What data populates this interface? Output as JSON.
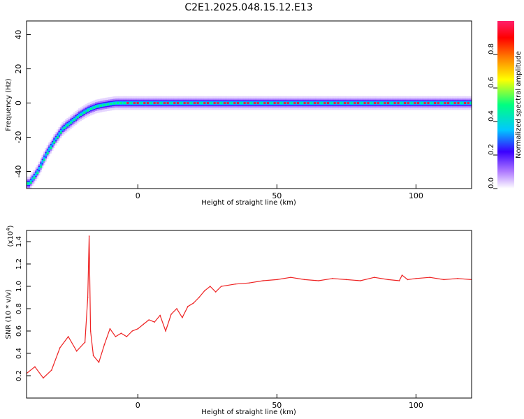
{
  "title": "C2E1.2025.048.15.12.E13",
  "chart_data": [
    {
      "type": "heatmap",
      "title": "C2E1.2025.048.15.12.E13",
      "xlabel": "Height of straight line (km)",
      "ylabel": "Frequency (Hz)",
      "xlim": [
        -40,
        120
      ],
      "ylim": [
        -50,
        48
      ],
      "xticks": [
        0,
        50,
        100
      ],
      "yticks": [
        -40,
        -20,
        0,
        20,
        40
      ],
      "ridge": {
        "description_points": [
          {
            "x": -39,
            "y": -47
          },
          {
            "x": -36,
            "y": -40
          },
          {
            "x": -33,
            "y": -30
          },
          {
            "x": -30,
            "y": -22
          },
          {
            "x": -27,
            "y": -15
          },
          {
            "x": -24,
            "y": -11
          },
          {
            "x": -21,
            "y": -7
          },
          {
            "x": -18,
            "y": -4
          },
          {
            "x": -15,
            "y": -2
          },
          {
            "x": -12,
            "y": -1
          },
          {
            "x": -8,
            "y": 0
          },
          {
            "x": 0,
            "y": 0
          },
          {
            "x": 120,
            "y": 0
          }
        ],
        "peak_amplitude": 1.0
      },
      "colorbar": {
        "label": "Normalized spectral amplitude",
        "range": [
          0,
          1
        ],
        "ticks": [
          0.0,
          0.2,
          0.4,
          0.6,
          0.8
        ],
        "tick_labels": [
          "0.0",
          "0.2",
          "0.4",
          "0.6",
          "0.8"
        ],
        "colors": [
          "#ffffff",
          "#b07cff",
          "#3a00ff",
          "#00c8ff",
          "#00ff80",
          "#ffff00",
          "#ff8000",
          "#ff0000",
          "#ff1f6b"
        ]
      }
    },
    {
      "type": "line",
      "xlabel": "Height of straight line (km)",
      "ylabel": "SNR (10 * v/v)",
      "scale_label": "(x10",
      "scale_exponent": "4",
      "xlim": [
        -40,
        120
      ],
      "ylim": [
        0.0,
        1.5
      ],
      "xticks": [
        0,
        50,
        100
      ],
      "yticks": [
        0.2,
        0.4,
        0.6,
        0.8,
        1.0,
        1.2,
        1.4
      ],
      "ytick_labels": [
        "0.2",
        "0.4",
        "0.6",
        "0.8",
        "1.0",
        "1.2",
        "1.4"
      ],
      "color": "#ee2222",
      "series": [
        {
          "x": [
            -40,
            -37,
            -34,
            -31,
            -28,
            -25,
            -22,
            -19,
            -18,
            -17.5,
            -17,
            -16,
            -14,
            -12,
            -10,
            -8,
            -6,
            -4,
            -2,
            0,
            2,
            4,
            6,
            8,
            10,
            12,
            14,
            16,
            18,
            20,
            22,
            24,
            26,
            28,
            30,
            35,
            40,
            45,
            50,
            55,
            60,
            65,
            70,
            75,
            80,
            85,
            90,
            94,
            95,
            97,
            100,
            105,
            110,
            115,
            120
          ],
          "y": [
            0.22,
            0.28,
            0.18,
            0.25,
            0.45,
            0.55,
            0.42,
            0.5,
            0.9,
            1.45,
            0.6,
            0.38,
            0.32,
            0.48,
            0.62,
            0.55,
            0.58,
            0.55,
            0.6,
            0.62,
            0.66,
            0.7,
            0.68,
            0.74,
            0.6,
            0.75,
            0.8,
            0.72,
            0.82,
            0.85,
            0.9,
            0.96,
            1.0,
            0.95,
            1.0,
            1.02,
            1.03,
            1.05,
            1.06,
            1.08,
            1.06,
            1.05,
            1.07,
            1.06,
            1.05,
            1.08,
            1.06,
            1.05,
            1.1,
            1.06,
            1.07,
            1.08,
            1.06,
            1.07,
            1.06
          ]
        }
      ]
    }
  ]
}
